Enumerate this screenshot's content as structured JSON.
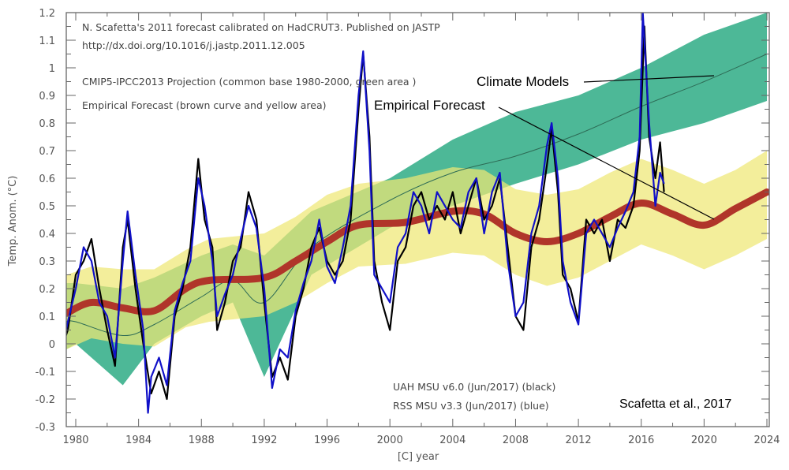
{
  "chart_data": {
    "type": "line",
    "title": "",
    "xlabel": "[C]  year",
    "ylabel": "Temp. Anom. (°C)",
    "xlim": [
      1979.4,
      2024
    ],
    "ylim": [
      -0.3,
      1.2
    ],
    "x_ticks": [
      "1980",
      "1984",
      "1988",
      "1992",
      "1996",
      "2000",
      "2004",
      "2008",
      "2012",
      "2016",
      "2020",
      "2024"
    ],
    "y_ticks": [
      "1.2",
      "1.1",
      "1",
      "0.9",
      "0.8",
      "0.7",
      "0.6",
      "0.5",
      "0.4",
      "0.3",
      "0.2",
      "0.1",
      "0",
      "-0.1",
      "-0.2",
      "-0.3"
    ],
    "legend_top": [
      "N. Scafetta's 2011 forecast calibrated on HadCRUT3. Published on JASTP",
      "http://dx.doi.org/10.1016/j.jastp.2011.12.005",
      "CMIP5-IPCC2013 Projection (common base 1980-2000, green area )",
      "Empirical Forecast (brown curve and yellow area)"
    ],
    "legend_bottom": [
      "UAH MSU v6.0 (Jun/2017) (black)",
      "RSS MSU v3.3 (Jun/2017) (blue)"
    ],
    "credit": "Scafetta et al., 2017",
    "annotations": [
      "Climate Models",
      "Empirical Forecast"
    ],
    "colors": {
      "uah": "#000000",
      "rss": "#1010c8",
      "empirical": "#b0352a",
      "yellow_band": "#eee874",
      "green_band": "#4db897",
      "cmip_mean": "#2d6b55"
    },
    "cmip5": {
      "x": [
        1979.4,
        1980,
        1983,
        1985,
        1988,
        1990,
        1992,
        1995,
        2000,
        2004,
        2008,
        2012,
        2016,
        2020,
        2024
      ],
      "upper": [
        0.22,
        0.22,
        0.2,
        0.24,
        0.32,
        0.36,
        0.32,
        0.48,
        0.6,
        0.74,
        0.84,
        0.9,
        1.0,
        1.12,
        1.2
      ],
      "lower": [
        -0.02,
        -0.0,
        -0.15,
        0.0,
        0.1,
        0.15,
        -0.12,
        0.25,
        0.42,
        0.5,
        0.58,
        0.65,
        0.74,
        0.8,
        0.88
      ],
      "mean": [
        0.08,
        0.08,
        0.03,
        0.07,
        0.17,
        0.23,
        0.15,
        0.35,
        0.52,
        0.62,
        0.68,
        0.76,
        0.86,
        0.95,
        1.05
      ]
    },
    "empirical": {
      "x": [
        1979.4,
        1981,
        1983,
        1985,
        1987,
        1988.5,
        1992,
        1994,
        1996,
        1998,
        2001,
        2004,
        2006,
        2008,
        2010,
        2012,
        2014,
        2016,
        2018,
        2020,
        2022,
        2024
      ],
      "value": [
        0.11,
        0.15,
        0.13,
        0.12,
        0.2,
        0.23,
        0.24,
        0.3,
        0.37,
        0.43,
        0.44,
        0.48,
        0.47,
        0.4,
        0.37,
        0.4,
        0.46,
        0.51,
        0.47,
        0.43,
        0.49,
        0.55
      ],
      "upper": [
        0.25,
        0.28,
        0.27,
        0.27,
        0.34,
        0.38,
        0.4,
        0.46,
        0.54,
        0.58,
        0.6,
        0.64,
        0.63,
        0.56,
        0.54,
        0.56,
        0.62,
        0.67,
        0.63,
        0.58,
        0.63,
        0.7
      ],
      "lower": [
        -0.02,
        0.02,
        0.0,
        -0.01,
        0.06,
        0.08,
        0.1,
        0.15,
        0.22,
        0.28,
        0.29,
        0.33,
        0.32,
        0.25,
        0.21,
        0.24,
        0.3,
        0.36,
        0.32,
        0.27,
        0.32,
        0.38
      ]
    },
    "series": [
      {
        "name": "UAH MSU v6.0 (Jun/2017) (black)",
        "x": [
          1979.0,
          1979.5,
          1980.0,
          1980.5,
          1981.0,
          1981.5,
          1982.0,
          1982.5,
          1983.0,
          1983.3,
          1983.8,
          1984.3,
          1984.8,
          1985.3,
          1985.8,
          1986.3,
          1986.8,
          1987.3,
          1987.8,
          1988.2,
          1988.7,
          1989.0,
          1989.5,
          1990.0,
          1990.5,
          1991.0,
          1991.5,
          1992.0,
          1992.5,
          1993.0,
          1993.5,
          1994.0,
          1994.5,
          1995.0,
          1995.5,
          1996.0,
          1996.5,
          1997.0,
          1997.5,
          1998.0,
          1998.3,
          1998.7,
          1999.0,
          1999.5,
          2000.0,
          2000.5,
          2001.0,
          2001.5,
          2002.0,
          2002.5,
          2003.0,
          2003.5,
          2004.0,
          2004.5,
          2005.0,
          2005.5,
          2006.0,
          2006.5,
          2007.0,
          2007.5,
          2008.0,
          2008.5,
          2009.0,
          2009.5,
          2010.0,
          2010.3,
          2010.7,
          2011.0,
          2011.5,
          2012.0,
          2012.5,
          2013.0,
          2013.5,
          2014.0,
          2014.5,
          2015.0,
          2015.5,
          2015.9,
          2016.2,
          2016.5,
          2016.9,
          2017.2,
          2017.45
        ],
        "y": [
          -0.03,
          0.05,
          0.25,
          0.3,
          0.38,
          0.2,
          0.05,
          -0.08,
          0.35,
          0.45,
          0.2,
          0.0,
          -0.18,
          -0.1,
          -0.2,
          0.1,
          0.2,
          0.35,
          0.67,
          0.45,
          0.35,
          0.05,
          0.15,
          0.3,
          0.35,
          0.55,
          0.45,
          0.15,
          -0.12,
          -0.05,
          -0.13,
          0.1,
          0.2,
          0.35,
          0.42,
          0.3,
          0.25,
          0.3,
          0.45,
          0.85,
          1.05,
          0.75,
          0.3,
          0.15,
          0.05,
          0.3,
          0.35,
          0.5,
          0.55,
          0.45,
          0.5,
          0.45,
          0.55,
          0.4,
          0.5,
          0.6,
          0.45,
          0.5,
          0.6,
          0.35,
          0.1,
          0.05,
          0.35,
          0.45,
          0.65,
          0.78,
          0.55,
          0.25,
          0.2,
          0.08,
          0.45,
          0.4,
          0.45,
          0.3,
          0.45,
          0.42,
          0.5,
          0.7,
          1.15,
          0.75,
          0.6,
          0.73,
          0.55
        ]
      },
      {
        "name": "RSS MSU v3.3 (Jun/2017) (blue)",
        "x": [
          1979.0,
          1979.5,
          1980.0,
          1980.5,
          1981.0,
          1981.5,
          1982.0,
          1982.5,
          1983.0,
          1983.3,
          1983.8,
          1984.3,
          1984.6,
          1984.8,
          1985.3,
          1985.8,
          1986.3,
          1986.8,
          1987.3,
          1987.8,
          1988.2,
          1988.7,
          1989.0,
          1989.5,
          1990.0,
          1990.5,
          1991.0,
          1991.5,
          1992.0,
          1992.5,
          1993.0,
          1993.5,
          1994.0,
          1994.5,
          1995.0,
          1995.5,
          1996.0,
          1996.5,
          1997.0,
          1997.5,
          1998.0,
          1998.3,
          1998.7,
          1999.0,
          1999.5,
          2000.0,
          2000.5,
          2001.0,
          2001.5,
          2002.0,
          2002.5,
          2003.0,
          2003.5,
          2004.0,
          2004.5,
          2005.0,
          2005.5,
          2006.0,
          2006.5,
          2007.0,
          2007.5,
          2008.0,
          2008.5,
          2009.0,
          2009.5,
          2010.0,
          2010.3,
          2010.7,
          2011.0,
          2011.5,
          2012.0,
          2012.5,
          2013.0,
          2013.5,
          2014.0,
          2014.5,
          2015.0,
          2015.5,
          2015.9,
          2016.1,
          2016.5,
          2016.9,
          2017.2,
          2017.45
        ],
        "y": [
          -0.05,
          0.08,
          0.2,
          0.35,
          0.3,
          0.15,
          0.1,
          -0.05,
          0.3,
          0.48,
          0.25,
          0.05,
          -0.25,
          -0.12,
          -0.05,
          -0.15,
          0.12,
          0.22,
          0.3,
          0.6,
          0.5,
          0.3,
          0.1,
          0.18,
          0.25,
          0.38,
          0.5,
          0.42,
          0.2,
          -0.16,
          -0.02,
          -0.05,
          0.12,
          0.22,
          0.3,
          0.45,
          0.28,
          0.22,
          0.35,
          0.5,
          0.9,
          1.06,
          0.7,
          0.25,
          0.2,
          0.15,
          0.35,
          0.4,
          0.55,
          0.5,
          0.4,
          0.55,
          0.5,
          0.45,
          0.42,
          0.55,
          0.6,
          0.4,
          0.55,
          0.62,
          0.3,
          0.1,
          0.15,
          0.4,
          0.5,
          0.72,
          0.8,
          0.6,
          0.3,
          0.15,
          0.07,
          0.4,
          0.45,
          0.4,
          0.35,
          0.42,
          0.48,
          0.55,
          0.75,
          1.2,
          0.8,
          0.5,
          0.62,
          0.58
        ]
      }
    ]
  }
}
